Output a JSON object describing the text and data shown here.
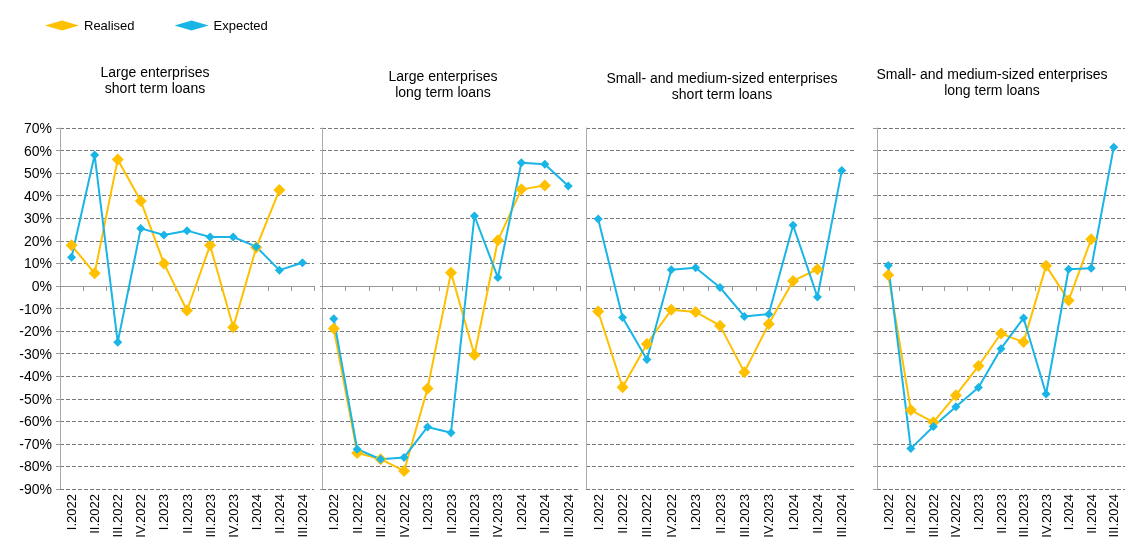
{
  "chart_data": [
    {
      "type": "line",
      "title": "Large enterprises\nshort term loans",
      "categories": [
        "I.2022",
        "II.2022",
        "III.2022",
        "IV.2022",
        "I.2023",
        "II.2023",
        "III.2023",
        "IV.2023",
        "I.2024",
        "II.2024",
        "III.2024"
      ],
      "series": [
        {
          "name": "Realised",
          "color": "#ffc000",
          "values": [
            18,
            5.6,
            56,
            37.6,
            10,
            -10.9,
            18,
            -18.3,
            17,
            42.5,
            null
          ]
        },
        {
          "name": "Expected",
          "color": "#19b5e6",
          "values": [
            12.7,
            58,
            -25,
            25.5,
            22.6,
            24.5,
            21.7,
            21.7,
            17.4,
            7,
            10.3
          ]
        }
      ],
      "ylim": [
        -90,
        70
      ],
      "yticks": [
        {
          "value": -90,
          "label": "-90%"
        },
        {
          "value": -80,
          "label": "-80%"
        },
        {
          "value": -70,
          "label": "-70%"
        },
        {
          "value": -60,
          "label": "-60%"
        },
        {
          "value": -50,
          "label": "-50%"
        },
        {
          "value": -40,
          "label": "-40%"
        },
        {
          "value": -30,
          "label": "-30%"
        },
        {
          "value": -20,
          "label": "-20%"
        },
        {
          "value": -10,
          "label": "-10%"
        },
        {
          "value": 0,
          "label": "0%"
        },
        {
          "value": 10,
          "label": "10%"
        },
        {
          "value": 20,
          "label": "20%"
        },
        {
          "value": 30,
          "label": "30%"
        },
        {
          "value": 40,
          "label": "40%"
        },
        {
          "value": 50,
          "label": "50%"
        },
        {
          "value": 60,
          "label": "60%"
        },
        {
          "value": 70,
          "label": "70%"
        }
      ],
      "grid": "y",
      "legend": "top left",
      "marker": "diamond",
      "line_style": "solid"
    },
    {
      "type": "line",
      "title": "Large enterprises\nlong term loans",
      "categories": [
        "I.2022",
        "II.2022",
        "III.2022",
        "IV.2022",
        "I.2023",
        "II.2023",
        "III.2023",
        "IV.2023",
        "I.2024",
        "II.2024",
        "III.2024"
      ],
      "series": [
        {
          "color": "#ffc000",
          "values": [
            -18.9,
            -74,
            -76.8,
            -82,
            -45.5,
            5.9,
            -30.6,
            20.2,
            42.8,
            44.5,
            null
          ]
        },
        {
          "color": "#19b5e6",
          "values": [
            -14.5,
            -72.4,
            -76.8,
            -76,
            -62.5,
            -65.1,
            31,
            3.7,
            54.6,
            53.9,
            44.3
          ]
        }
      ],
      "ylim": [
        -90,
        70
      ],
      "tick_labels": "x",
      "grid": "y",
      "marker": "diamond",
      "line_style": "solid"
    },
    {
      "type": "line",
      "title": "Small- and medium-sized enterprises\nshort term loans",
      "categories": [
        "I.2022",
        "II.2022",
        "III.2022",
        "IV.2022",
        "I.2023",
        "II.2023",
        "III.2023",
        "IV.2023",
        "I.2024",
        "II.2024",
        "III.2024"
      ],
      "series": [
        {
          "color": "#ffc000",
          "values": [
            -11.3,
            -44.9,
            -25.7,
            -10.6,
            -11.5,
            -17.6,
            -38.2,
            -16.9,
            2.2,
            7.4,
            null
          ]
        },
        {
          "color": "#19b5e6",
          "values": [
            29.7,
            -14,
            -32.6,
            7.2,
            8.1,
            -0.7,
            -13.5,
            -12.5,
            26.9,
            -4.9,
            51.2
          ]
        }
      ],
      "ylim": [
        -90,
        70
      ],
      "tick_labels": "x",
      "grid": "y",
      "marker": "diamond",
      "line_style": "solid"
    },
    {
      "type": "line",
      "title": "Small- and medium-sized enterprises\nlong term loans",
      "categories": [
        "I.2022",
        "II.2022",
        "III.2022",
        "IV.2022",
        "I.2023",
        "II.2023",
        "III.2023",
        "IV.2023",
        "I.2024",
        "II.2024",
        "III.2024"
      ],
      "series": [
        {
          "color": "#ffc000",
          "values": [
            4.9,
            -55,
            -60.4,
            -48.4,
            -35.5,
            -21.1,
            -24.9,
            8.9,
            -6.4,
            20.7,
            null
          ]
        },
        {
          "color": "#19b5e6",
          "values": [
            9.1,
            -72.1,
            -62.3,
            -53.5,
            -45,
            -27.8,
            -14.2,
            -47.9,
            7.4,
            7.8,
            61.5
          ]
        }
      ],
      "ylim": [
        -90,
        70
      ],
      "tick_labels": "x",
      "grid": "y",
      "marker": "diamond",
      "line_style": "solid"
    }
  ]
}
